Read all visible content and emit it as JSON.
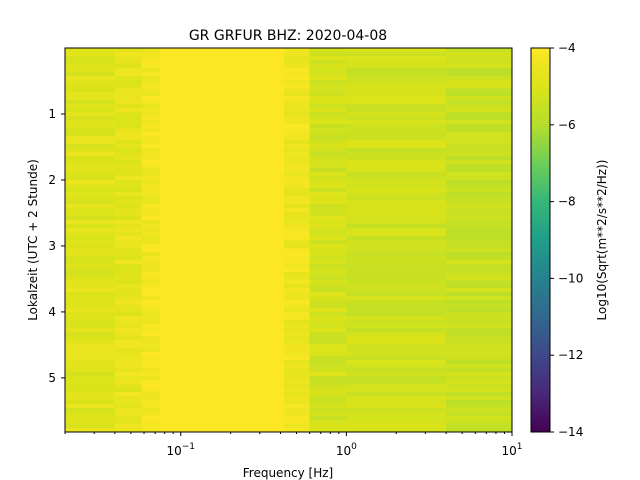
{
  "chart_data": {
    "type": "heatmap",
    "title": "GR GRFUR  BHZ: 2020-04-08",
    "xlabel": "Frequency [Hz]",
    "ylabel": "Lokalzeit (UTC + 2 Stunde)",
    "x_scale": "log",
    "xlim": [
      0.02,
      10
    ],
    "ylim": [
      5.82,
      0
    ],
    "y_inverted": true,
    "x_ticks": [
      {
        "value": 0.1,
        "base": "10",
        "exp": "−1"
      },
      {
        "value": 1,
        "base": "10",
        "exp": "0"
      },
      {
        "value": 10,
        "base": "10",
        "exp": "1"
      }
    ],
    "y_ticks": [
      {
        "value": 1,
        "label": "1"
      },
      {
        "value": 2,
        "label": "2"
      },
      {
        "value": 3,
        "label": "3"
      },
      {
        "value": 4,
        "label": "4"
      },
      {
        "value": 5,
        "label": "5"
      }
    ],
    "colorbar": {
      "label": "Log10(Sqrt(m**2/s**2/Hz))",
      "colormap": "viridis",
      "range": [
        -14,
        -4
      ],
      "ticks": [
        {
          "value": -4,
          "label": "−4"
        },
        {
          "value": -6,
          "label": "−6"
        },
        {
          "value": -8,
          "label": "−8"
        },
        {
          "value": -10,
          "label": "−10"
        },
        {
          "value": -12,
          "label": "−12"
        },
        {
          "value": -14,
          "label": "−14"
        }
      ]
    },
    "bands": [
      {
        "f_min": 0.02,
        "f_max": 0.04,
        "level": -4.9
      },
      {
        "f_min": 0.04,
        "f_max": 0.058,
        "level": -4.7
      },
      {
        "f_min": 0.058,
        "f_max": 0.075,
        "level": -4.3
      },
      {
        "f_min": 0.075,
        "f_max": 0.42,
        "level": -4.0
      },
      {
        "f_min": 0.42,
        "f_max": 0.6,
        "level": -4.4
      },
      {
        "f_min": 0.6,
        "f_max": 1.0,
        "level": -5.2
      },
      {
        "f_min": 1.0,
        "f_max": 4.0,
        "level": -5.3
      },
      {
        "f_min": 4.0,
        "f_max": 10,
        "level": -5.5
      }
    ]
  }
}
